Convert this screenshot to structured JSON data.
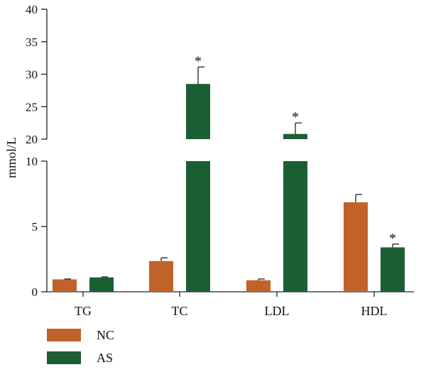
{
  "chart_data": {
    "type": "bar",
    "ylabel": "mmol/L",
    "categories": [
      "TG",
      "TC",
      "LDL",
      "HDL"
    ],
    "series": [
      {
        "name": "NC",
        "color": "#c0622a",
        "values": [
          0.95,
          2.35,
          0.88,
          6.85
        ],
        "errors": [
          0.03,
          0.25,
          0.1,
          0.6
        ],
        "significant": [
          false,
          false,
          false,
          false
        ]
      },
      {
        "name": "AS",
        "color": "#1c5e33",
        "values": [
          1.1,
          28.5,
          20.8,
          3.4
        ],
        "errors": [
          0.04,
          2.6,
          1.7,
          0.25
        ],
        "significant": [
          false,
          true,
          true,
          true
        ]
      }
    ],
    "y_break": {
      "lower_range": [
        0,
        10
      ],
      "upper_range": [
        20,
        40
      ]
    },
    "yticks_lower": [
      "0",
      "5",
      "10"
    ],
    "yticks_upper": [
      "20",
      "25",
      "30",
      "35",
      "40"
    ],
    "significance_marker": "*",
    "legend_position": "bottom-left"
  }
}
